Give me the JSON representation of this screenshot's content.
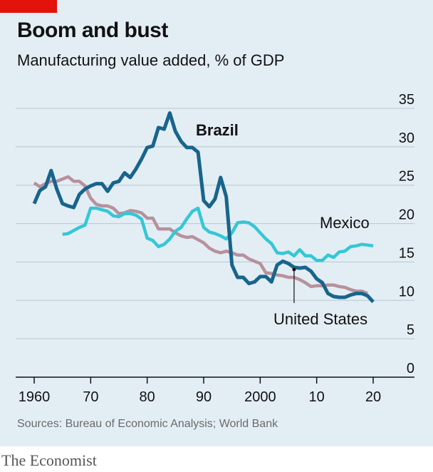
{
  "header": {
    "title": "Boom and bust",
    "subtitle": "Manufacturing value added, % of GDP"
  },
  "footer": {
    "source": "Sources: Bureau of Economic Analysis; World Bank",
    "brand": "The Economist"
  },
  "colors": {
    "background": "#e3edf4",
    "accent_red": "#e3120b",
    "brazil": "#17648d",
    "mexico": "#36c7d6",
    "united_states": "#b7919b",
    "grid": "#b7c6cf"
  },
  "chart_data": {
    "type": "line",
    "title": "Boom and bust",
    "subtitle": "Manufacturing value added, % of GDP",
    "xlabel": "",
    "ylabel": "",
    "xlim": [
      1960,
      2020
    ],
    "ylim": [
      0,
      35
    ],
    "x_ticks": [
      1960,
      1970,
      1980,
      1990,
      2000,
      2010,
      2020
    ],
    "x_tick_labels": [
      "1960",
      "70",
      "80",
      "90",
      "2000",
      "10",
      "20"
    ],
    "y_ticks": [
      0,
      5,
      10,
      15,
      20,
      25,
      30,
      35
    ],
    "y_tick_labels": [
      "0",
      "5",
      "10",
      "15",
      "20",
      "25",
      "30",
      "35"
    ],
    "y_axis_side": "right",
    "grid": true,
    "series": [
      {
        "name": "United States",
        "color": "#b7919b",
        "x": [
          1960,
          1961,
          1962,
          1963,
          1964,
          1965,
          1966,
          1967,
          1968,
          1969,
          1970,
          1971,
          1972,
          1973,
          1974,
          1975,
          1976,
          1977,
          1978,
          1979,
          1980,
          1981,
          1982,
          1983,
          1984,
          1985,
          1986,
          1987,
          1988,
          1989,
          1990,
          1991,
          1992,
          1993,
          1994,
          1995,
          1996,
          1997,
          1998,
          1999,
          2000,
          2001,
          2002,
          2003,
          2004,
          2005,
          2006,
          2007,
          2008,
          2009,
          2010,
          2011,
          2012,
          2013,
          2014,
          2015,
          2016,
          2017,
          2018,
          2019
        ],
        "values": [
          25.3,
          24.8,
          25.2,
          25.5,
          25.5,
          25.8,
          26.1,
          25.5,
          25.5,
          24.9,
          23.3,
          22.5,
          22.3,
          22.3,
          22.0,
          21.3,
          21.4,
          21.7,
          21.6,
          21.4,
          20.7,
          20.7,
          19.3,
          19.3,
          19.3,
          18.8,
          18.4,
          18.2,
          18.3,
          17.9,
          17.5,
          16.8,
          16.4,
          16.2,
          16.4,
          16.2,
          15.9,
          15.9,
          15.4,
          15.1,
          14.8,
          13.6,
          13.5,
          13.3,
          13.2,
          13.0,
          13.0,
          12.7,
          12.3,
          11.8,
          11.9,
          11.9,
          12.0,
          12.0,
          11.8,
          11.7,
          11.4,
          11.2,
          11.2,
          10.9
        ]
      },
      {
        "name": "Mexico",
        "color": "#36c7d6",
        "x": [
          1965,
          1966,
          1967,
          1968,
          1969,
          1970,
          1971,
          1972,
          1973,
          1974,
          1975,
          1976,
          1977,
          1978,
          1979,
          1980,
          1981,
          1982,
          1983,
          1984,
          1985,
          1986,
          1987,
          1988,
          1989,
          1990,
          1991,
          1992,
          1993,
          1994,
          1995,
          1996,
          1997,
          1998,
          1999,
          2000,
          2001,
          2002,
          2003,
          2004,
          2005,
          2006,
          2007,
          2008,
          2009,
          2010,
          2011,
          2012,
          2013,
          2014,
          2015,
          2016,
          2017,
          2018,
          2019,
          2020
        ],
        "values": [
          18.6,
          18.7,
          19.1,
          19.5,
          19.8,
          22.0,
          22.0,
          21.8,
          21.6,
          21.0,
          20.9,
          21.3,
          21.3,
          21.1,
          20.6,
          18.1,
          17.8,
          17.0,
          17.3,
          18.0,
          19.0,
          19.5,
          20.6,
          21.6,
          22.0,
          19.5,
          18.9,
          18.7,
          18.4,
          18.0,
          18.8,
          20.1,
          20.2,
          20.1,
          19.6,
          18.8,
          18.0,
          17.4,
          16.2,
          16.1,
          16.3,
          15.8,
          16.6,
          15.8,
          15.8,
          15.2,
          15.2,
          15.9,
          15.6,
          16.3,
          16.4,
          17.0,
          17.1,
          17.3,
          17.2,
          17.1
        ]
      },
      {
        "name": "Brazil",
        "color": "#17648d",
        "x": [
          1960,
          1961,
          1962,
          1963,
          1964,
          1965,
          1966,
          1967,
          1968,
          1969,
          1970,
          1971,
          1972,
          1973,
          1974,
          1975,
          1976,
          1977,
          1978,
          1979,
          1980,
          1981,
          1982,
          1983,
          1984,
          1985,
          1986,
          1987,
          1988,
          1989,
          1990,
          1991,
          1992,
          1993,
          1994,
          1995,
          1996,
          1997,
          1998,
          1999,
          2000,
          2001,
          2002,
          2003,
          2004,
          2005,
          2006,
          2007,
          2008,
          2009,
          2010,
          2011,
          2012,
          2013,
          2014,
          2015,
          2016,
          2017,
          2018,
          2019,
          2020
        ],
        "values": [
          22.6,
          24.3,
          24.8,
          26.9,
          24.5,
          22.6,
          22.3,
          22.1,
          23.8,
          24.5,
          24.9,
          25.2,
          25.2,
          24.2,
          25.3,
          25.5,
          26.6,
          26.0,
          27.1,
          28.4,
          29.9,
          30.1,
          32.5,
          32.3,
          34.4,
          32.0,
          30.7,
          29.9,
          29.9,
          29.3,
          23.0,
          22.2,
          23.2,
          26.0,
          23.5,
          14.6,
          13.0,
          13.0,
          12.2,
          12.4,
          13.1,
          13.1,
          12.4,
          14.6,
          15.1,
          14.8,
          14.3,
          14.2,
          14.3,
          13.8,
          12.8,
          12.3,
          10.9,
          10.5,
          10.4,
          10.4,
          10.7,
          10.9,
          10.9,
          10.6,
          9.8
        ]
      }
    ],
    "annotations": [
      {
        "text": "Brazil",
        "series": "Brazil",
        "bold": true
      },
      {
        "text": "Mexico",
        "series": "Mexico",
        "bold": false
      },
      {
        "text": "United States",
        "series": "United States",
        "bold": false,
        "pointer_x": 2006
      }
    ]
  }
}
